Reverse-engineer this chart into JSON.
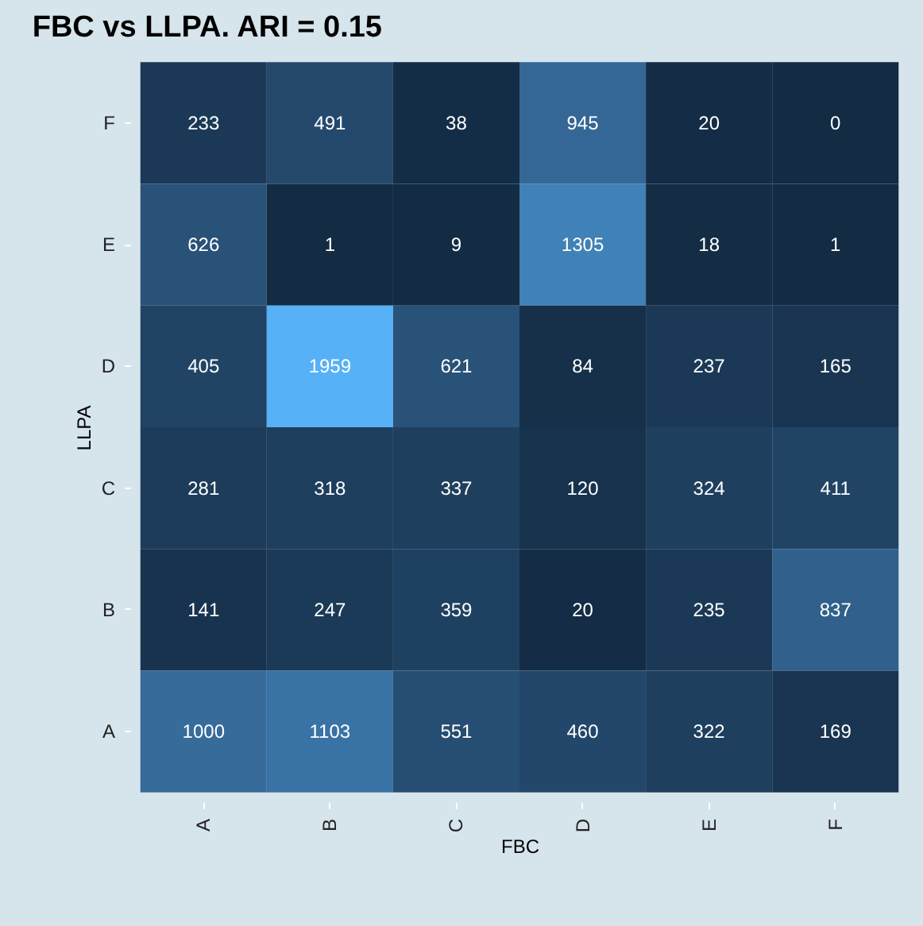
{
  "chart_data": {
    "type": "heatmap",
    "title": "FBC vs LLPA. ARI = 0.15",
    "xlabel": "FBC",
    "ylabel": "LLPA",
    "categories": [
      "A",
      "B",
      "C",
      "D",
      "E",
      "F"
    ],
    "y_categories": [
      "F",
      "E",
      "D",
      "C",
      "B",
      "A"
    ],
    "cells": [
      [
        233,
        491,
        38,
        945,
        20,
        0
      ],
      [
        626,
        1,
        9,
        1305,
        18,
        1
      ],
      [
        405,
        1959,
        621,
        84,
        237,
        165
      ],
      [
        281,
        318,
        337,
        120,
        324,
        411
      ],
      [
        141,
        247,
        359,
        20,
        235,
        837
      ],
      [
        1000,
        1103,
        551,
        460,
        322,
        169
      ]
    ],
    "data_labels": true,
    "grid": false
  }
}
